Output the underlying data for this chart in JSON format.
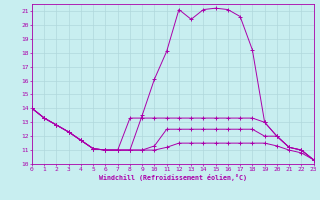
{
  "xlabel": "Windchill (Refroidissement éolien,°C)",
  "xlim": [
    0,
    23
  ],
  "ylim": [
    10,
    21.5
  ],
  "yticks": [
    10,
    11,
    12,
    13,
    14,
    15,
    16,
    17,
    18,
    19,
    20,
    21
  ],
  "xticks": [
    0,
    1,
    2,
    3,
    4,
    5,
    6,
    7,
    8,
    9,
    10,
    11,
    12,
    13,
    14,
    15,
    16,
    17,
    18,
    19,
    20,
    21,
    22,
    23
  ],
  "background_color": "#c8eef0",
  "grid_color": "#b0d8dc",
  "line_color": "#aa00aa",
  "curves": [
    {
      "x": [
        0,
        1,
        2,
        3,
        4,
        5,
        6,
        7,
        8,
        9,
        10,
        11,
        12,
        13,
        14,
        15,
        16,
        17,
        18,
        19,
        20,
        21,
        22,
        23
      ],
      "y": [
        14.0,
        13.3,
        12.8,
        12.3,
        11.7,
        11.1,
        11.0,
        11.0,
        11.0,
        13.5,
        16.1,
        18.1,
        21.1,
        20.4,
        21.1,
        21.2,
        21.1,
        20.6,
        18.2,
        13.0,
        12.0,
        11.2,
        11.0,
        10.3
      ]
    },
    {
      "x": [
        0,
        1,
        2,
        3,
        4,
        5,
        6,
        7,
        8,
        9,
        10,
        11,
        12,
        13,
        14,
        15,
        16,
        17,
        18,
        19,
        20,
        21,
        22,
        23
      ],
      "y": [
        14.0,
        13.3,
        12.8,
        12.3,
        11.7,
        11.1,
        11.0,
        11.0,
        13.3,
        13.3,
        13.3,
        13.3,
        13.3,
        13.3,
        13.3,
        13.3,
        13.3,
        13.3,
        13.3,
        13.0,
        12.0,
        11.2,
        11.0,
        10.3
      ]
    },
    {
      "x": [
        0,
        1,
        2,
        3,
        4,
        5,
        6,
        7,
        8,
        9,
        10,
        11,
        12,
        13,
        14,
        15,
        16,
        17,
        18,
        19,
        20,
        21,
        22,
        23
      ],
      "y": [
        14.0,
        13.3,
        12.8,
        12.3,
        11.7,
        11.1,
        11.0,
        11.0,
        11.0,
        11.0,
        11.3,
        12.5,
        12.5,
        12.5,
        12.5,
        12.5,
        12.5,
        12.5,
        12.5,
        12.0,
        12.0,
        11.2,
        11.0,
        10.3
      ]
    },
    {
      "x": [
        0,
        1,
        2,
        3,
        4,
        5,
        6,
        7,
        8,
        9,
        10,
        11,
        12,
        13,
        14,
        15,
        16,
        17,
        18,
        19,
        20,
        21,
        22,
        23
      ],
      "y": [
        14.0,
        13.3,
        12.8,
        12.3,
        11.7,
        11.1,
        11.0,
        11.0,
        11.0,
        11.0,
        11.0,
        11.2,
        11.5,
        11.5,
        11.5,
        11.5,
        11.5,
        11.5,
        11.5,
        11.5,
        11.3,
        11.0,
        10.8,
        10.3
      ]
    }
  ]
}
